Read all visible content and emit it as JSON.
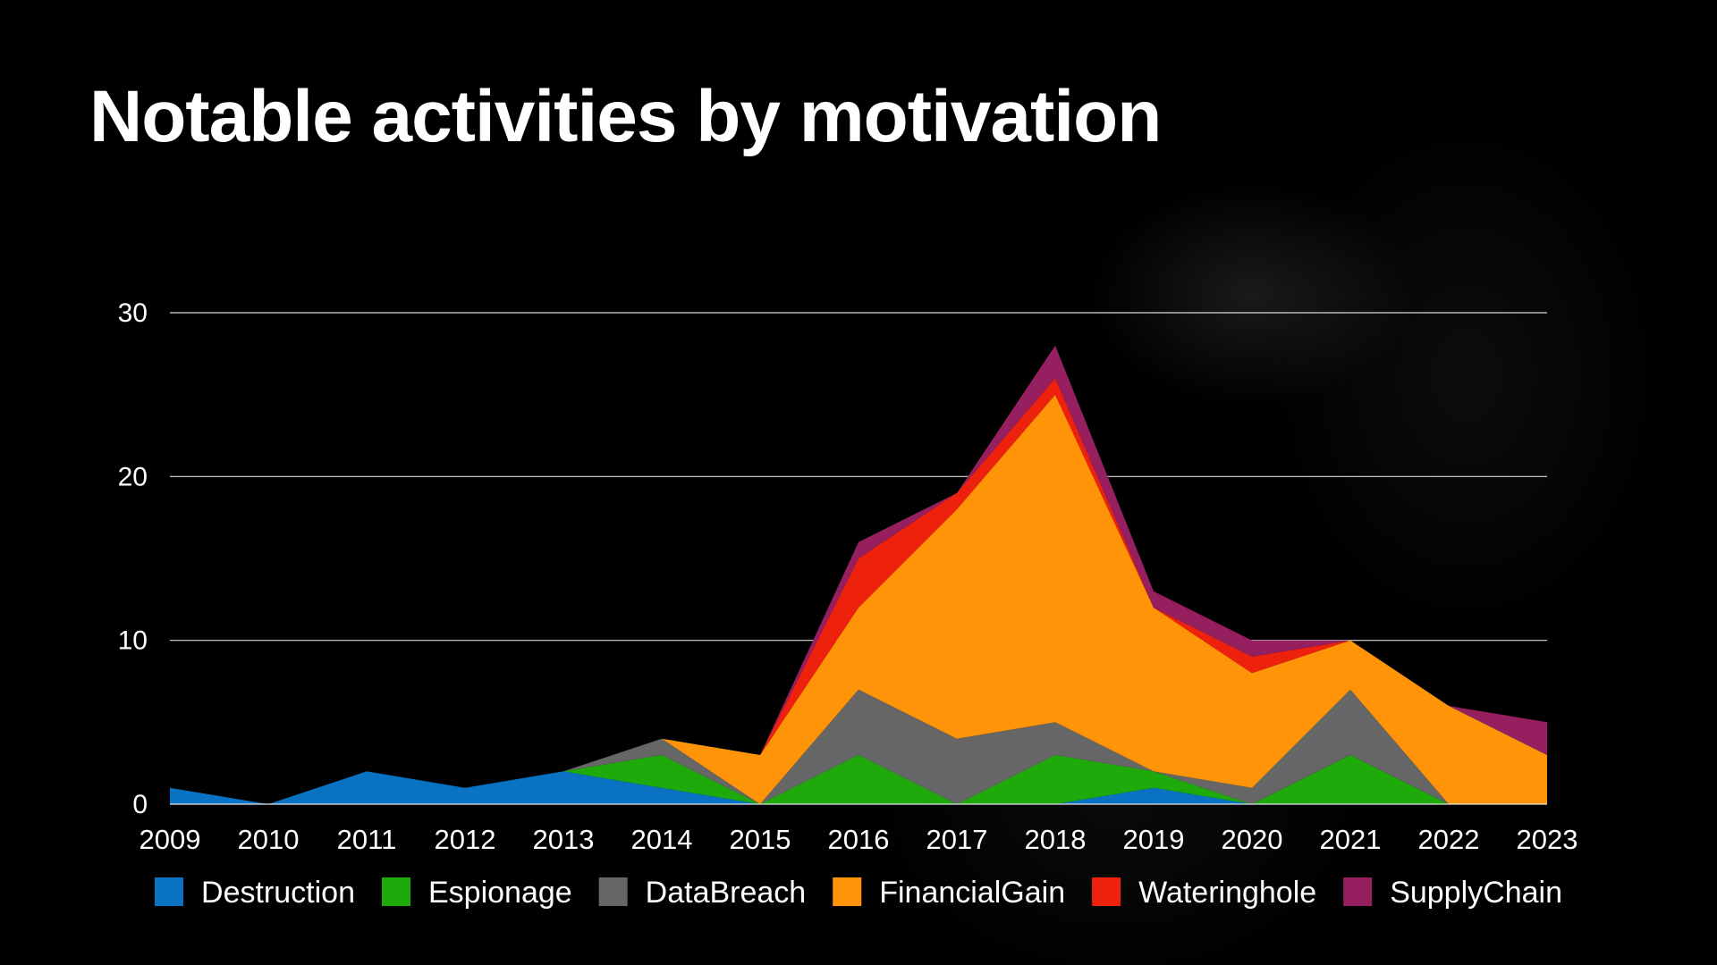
{
  "slide": {
    "title": "Notable activities by motivation"
  },
  "chart_data": {
    "type": "area",
    "stacked": true,
    "title": "",
    "xlabel": "",
    "ylabel": "",
    "categories": [
      "2009",
      "2010",
      "2011",
      "2012",
      "2013",
      "2014",
      "2015",
      "2016",
      "2017",
      "2018",
      "2019",
      "2020",
      "2021",
      "2022",
      "2023"
    ],
    "ylim": [
      0,
      30
    ],
    "yticks": [
      0,
      10,
      20,
      30
    ],
    "grid": true,
    "legend_position": "bottom",
    "series": [
      {
        "name": "Destruction",
        "color": "#0a72c2",
        "values": [
          1,
          0,
          2,
          1,
          2,
          1,
          0,
          0,
          0,
          0,
          1,
          0,
          0,
          0,
          0
        ]
      },
      {
        "name": "Espionage",
        "color": "#1eaa0a",
        "values": [
          0,
          0,
          0,
          0,
          0,
          2,
          0,
          3,
          0,
          3,
          1,
          0,
          3,
          0,
          0
        ]
      },
      {
        "name": "DataBreach",
        "color": "#666666",
        "values": [
          0,
          0,
          0,
          0,
          0,
          1,
          0,
          4,
          4,
          2,
          0,
          1,
          4,
          0,
          0
        ]
      },
      {
        "name": "FinancialGain",
        "color": "#ff9408",
        "values": [
          0,
          0,
          0,
          0,
          0,
          0,
          3,
          5,
          14,
          20,
          10,
          7,
          3,
          6,
          3
        ]
      },
      {
        "name": "Wateringhole",
        "color": "#ee220c",
        "values": [
          0,
          0,
          0,
          0,
          0,
          0,
          0,
          3,
          1,
          1,
          0,
          1,
          0,
          0,
          0
        ]
      },
      {
        "name": "SupplyChain",
        "color": "#961f60",
        "values": [
          0,
          0,
          0,
          0,
          0,
          0,
          0,
          1,
          0,
          2,
          1,
          1,
          0,
          0,
          2
        ]
      }
    ]
  }
}
